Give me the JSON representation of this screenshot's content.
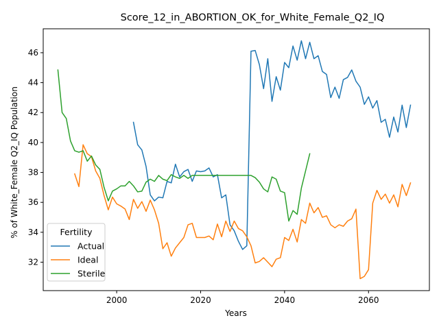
{
  "chart_data": {
    "type": "line",
    "title": "Score_12_in_ABORTION_OK_for_White_Female_Q2_IQ",
    "xlabel": "Years",
    "ylabel": "% of White_Female Q2_IQ Population",
    "xlim": [
      1982.5,
      2074.5
    ],
    "ylim": [
      30.1,
      47.6
    ],
    "x_ticks": [
      2000,
      2020,
      2040,
      2060
    ],
    "y_ticks": [
      32,
      34,
      36,
      38,
      40,
      42,
      44,
      46
    ],
    "grid": false,
    "legend": {
      "title": "Fertility",
      "placement": "lower-left"
    },
    "series": [
      {
        "name": "Actual",
        "color": "#1f77b4",
        "x": [
          2004,
          2005,
          2006,
          2007,
          2008,
          2009,
          2010,
          2011,
          2012,
          2013,
          2014,
          2015,
          2016,
          2017,
          2018,
          2019,
          2020,
          2021,
          2022,
          2023,
          2024,
          2025,
          2026,
          2027,
          2028,
          2029,
          2030,
          2031,
          2032,
          2033,
          2034,
          2035,
          2036,
          2037,
          2038,
          2039,
          2040,
          2041,
          2042,
          2043,
          2044,
          2045,
          2046,
          2047,
          2048,
          2049,
          2050,
          2051,
          2052,
          2053,
          2054,
          2055,
          2056,
          2057,
          2058,
          2059,
          2060,
          2061,
          2062,
          2063,
          2064,
          2065,
          2066,
          2067,
          2068,
          2069,
          2070
        ],
        "y": [
          41.35,
          39.85,
          39.5,
          38.4,
          36.5,
          36.1,
          36.35,
          36.3,
          37.4,
          37.3,
          38.55,
          37.7,
          38.05,
          38.2,
          37.4,
          38.1,
          38.05,
          38.1,
          38.3,
          37.7,
          37.85,
          36.3,
          36.5,
          34.5,
          34.1,
          33.4,
          32.85,
          33.1,
          46.1,
          46.15,
          45.2,
          43.6,
          45.6,
          42.75,
          44.4,
          43.5,
          45.35,
          45.0,
          46.45,
          45.5,
          46.8,
          45.6,
          46.7,
          45.6,
          45.8,
          44.75,
          44.55,
          43.0,
          43.7,
          42.95,
          44.2,
          44.35,
          44.85,
          44.1,
          43.7,
          42.55,
          43.05,
          42.3,
          42.8,
          41.35,
          41.55,
          40.35,
          41.7,
          40.7,
          42.5,
          41.0,
          42.5
        ]
      },
      {
        "name": "Ideal",
        "color": "#ff7f0e",
        "x": [
          1990,
          1991,
          1992,
          1993,
          1994,
          1995,
          1996,
          1997,
          1998,
          1999,
          2000,
          2001,
          2002,
          2003,
          2004,
          2005,
          2006,
          2007,
          2008,
          2009,
          2010,
          2011,
          2012,
          2013,
          2014,
          2015,
          2016,
          2017,
          2018,
          2019,
          2020,
          2021,
          2022,
          2023,
          2024,
          2025,
          2026,
          2027,
          2028,
          2029,
          2030,
          2031,
          2032,
          2033,
          2034,
          2035,
          2036,
          2037,
          2038,
          2039,
          2040,
          2041,
          2042,
          2043,
          2044,
          2045,
          2046,
          2047,
          2048,
          2049,
          2050,
          2051,
          2052,
          2053,
          2054,
          2055,
          2056,
          2057,
          2058,
          2059,
          2060,
          2061,
          2062,
          2063,
          2064,
          2065,
          2066,
          2067,
          2068,
          2069,
          2070
        ],
        "y": [
          37.9,
          37.05,
          39.85,
          39.25,
          39.05,
          38.1,
          37.6,
          36.45,
          35.5,
          36.35,
          35.9,
          35.75,
          35.55,
          34.85,
          36.2,
          35.6,
          36.05,
          35.4,
          36.15,
          35.5,
          34.6,
          32.9,
          33.3,
          32.4,
          32.95,
          33.3,
          33.65,
          34.5,
          34.6,
          33.65,
          33.65,
          33.65,
          33.75,
          33.5,
          34.55,
          33.7,
          34.75,
          34.05,
          34.75,
          34.25,
          34.1,
          33.7,
          33.1,
          31.95,
          32.05,
          32.3,
          32.0,
          31.7,
          32.2,
          32.3,
          33.65,
          33.45,
          34.2,
          33.35,
          34.85,
          34.6,
          35.95,
          35.3,
          35.65,
          35.0,
          35.1,
          34.5,
          34.3,
          34.5,
          34.4,
          34.75,
          34.9,
          35.55,
          30.9,
          31.05,
          31.5,
          35.95,
          36.8,
          36.2,
          36.55,
          35.95,
          36.5,
          35.7,
          37.2,
          36.45,
          37.3
        ]
      },
      {
        "name": "Sterile",
        "color": "#2ca02c",
        "x": [
          1986,
          1987,
          1988,
          1989,
          1990,
          1991,
          1992,
          1993,
          1994,
          1995,
          1996,
          1997,
          1998,
          1999,
          2000,
          2001,
          2002,
          2003,
          2004,
          2005,
          2006,
          2007,
          2008,
          2009,
          2010,
          2011,
          2012,
          2013,
          2014,
          2015,
          2016,
          2017,
          2018,
          2019,
          2020,
          2021,
          2022,
          2023,
          2024,
          2025,
          2026,
          2027,
          2028,
          2029,
          2030,
          2031,
          2032,
          2033,
          2034,
          2035,
          2036,
          2037,
          2038,
          2039,
          2040,
          2041,
          2042,
          2043,
          2044,
          2045,
          2046
        ],
        "y": [
          44.85,
          42.0,
          41.6,
          40.1,
          39.45,
          39.35,
          39.45,
          38.75,
          39.1,
          38.5,
          38.2,
          37.0,
          36.1,
          36.75,
          36.9,
          37.1,
          37.1,
          37.4,
          37.1,
          36.7,
          36.75,
          37.35,
          37.55,
          37.4,
          37.8,
          37.55,
          37.45,
          37.85,
          37.7,
          37.6,
          37.8,
          37.6,
          37.8,
          37.8,
          37.8,
          37.8,
          37.8,
          37.8,
          37.8,
          37.8,
          37.8,
          37.8,
          37.8,
          37.8,
          37.8,
          37.8,
          37.8,
          37.65,
          37.35,
          36.9,
          36.7,
          37.7,
          37.55,
          36.75,
          36.65,
          34.75,
          35.45,
          35.2,
          36.95,
          38.1,
          39.25
        ]
      }
    ]
  }
}
